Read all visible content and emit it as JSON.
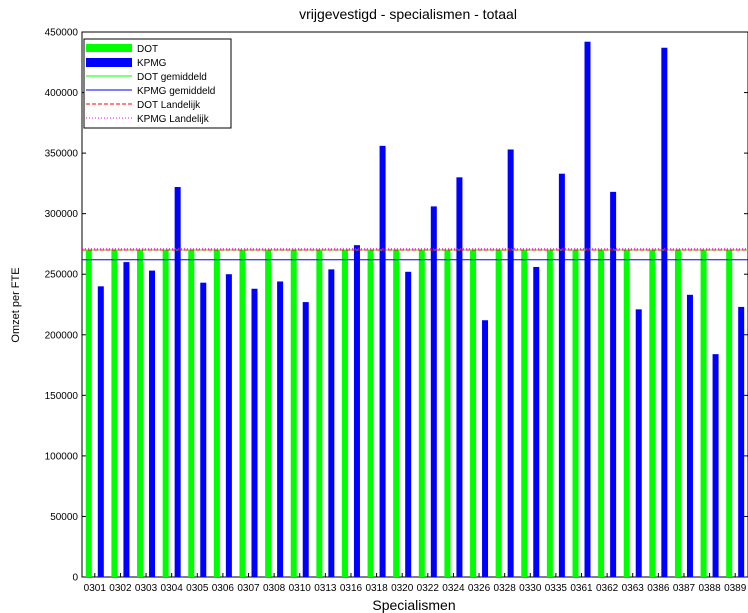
{
  "chart_data": {
    "type": "bar",
    "title": "vrijgevestigd - specialismen - totaal",
    "xlabel": "Specialismen",
    "ylabel": "Omzet per FTE",
    "ylim": [
      0,
      450000
    ],
    "yticks": [
      0,
      50000,
      100000,
      150000,
      200000,
      250000,
      300000,
      350000,
      400000,
      450000
    ],
    "ytick_labels": [
      "0",
      "50000",
      "100000",
      "150000",
      "200000",
      "250000",
      "300000",
      "350000",
      "400000",
      "450000"
    ],
    "categories": [
      "0301",
      "0302",
      "0303",
      "0304",
      "0305",
      "0306",
      "0307",
      "0308",
      "0310",
      "0313",
      "0316",
      "0318",
      "0320",
      "0322",
      "0324",
      "0326",
      "0328",
      "0330",
      "0335",
      "0361",
      "0362",
      "0363",
      "0386",
      "0387",
      "0388",
      "0389"
    ],
    "series": [
      {
        "name": "DOT",
        "color": "#00ff00",
        "values": [
          270000,
          270000,
          270000,
          270000,
          270000,
          270000,
          270000,
          270000,
          270000,
          270000,
          270000,
          270000,
          270000,
          270000,
          270000,
          270000,
          270000,
          270000,
          270000,
          270000,
          270000,
          270000,
          270000,
          270000,
          270000,
          270000
        ]
      },
      {
        "name": "KPMG",
        "color": "#0000ff",
        "values": [
          240000,
          260000,
          253000,
          322000,
          243000,
          250000,
          238000,
          244000,
          227000,
          254000,
          274000,
          356000,
          252000,
          306000,
          330000,
          212000,
          353000,
          256000,
          333000,
          442000,
          318000,
          221000,
          437000,
          233000,
          184000,
          223000
        ]
      }
    ],
    "reference_lines": [
      {
        "name": "DOT gemiddeld",
        "value": 270000,
        "color": "#00ff00",
        "style": "solid"
      },
      {
        "name": "KPMG gemiddeld",
        "value": 262000,
        "color": "#0000ff",
        "style": "solid"
      },
      {
        "name": "DOT Landelijk",
        "value": 270000,
        "color": "#ff0000",
        "style": "dashed"
      },
      {
        "name": "KPMG Landelijk",
        "value": 271000,
        "color": "#ff00ff",
        "style": "dotted"
      }
    ],
    "legend": {
      "placement": "top-left",
      "entries": [
        "DOT",
        "KPMG",
        "DOT gemiddeld",
        "KPMG gemiddeld",
        "DOT Landelijk",
        "KPMG Landelijk"
      ]
    },
    "grid": false
  }
}
